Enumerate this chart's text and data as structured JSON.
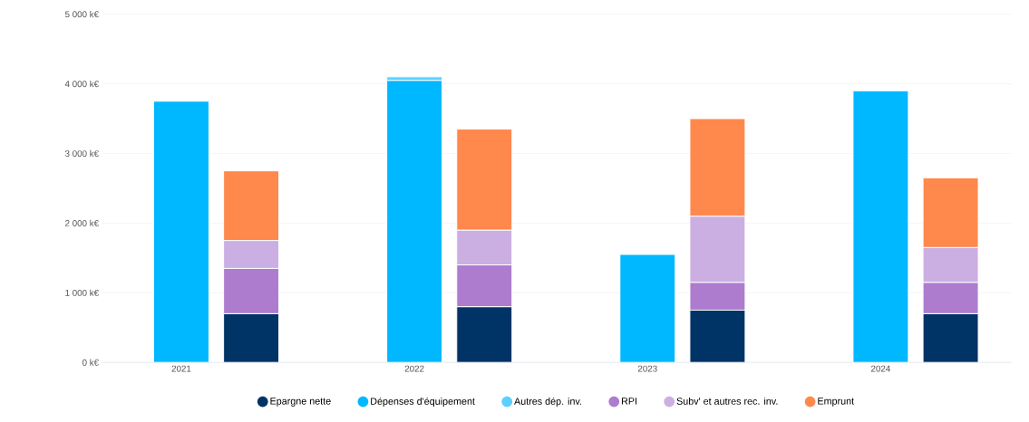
{
  "chart_data": {
    "type": "bar",
    "categories": [
      "2021",
      "2022",
      "2023",
      "2024"
    ],
    "series": [
      {
        "name": "Epargne nette",
        "color": "#003366",
        "values": [
          700,
          800,
          750,
          700
        ],
        "base": [
          0,
          0,
          0,
          0
        ]
      },
      {
        "name": "Dépenses d'équipement",
        "color": "#00b8ff",
        "values": [
          3750,
          4050,
          1550,
          3900
        ],
        "base": [
          0,
          0,
          0,
          0
        ]
      },
      {
        "name": "Autres dép. inv.",
        "color": "#5bd0ff",
        "values": [
          null,
          50,
          null,
          null
        ],
        "base": [
          null,
          4050,
          null,
          null
        ]
      },
      {
        "name": "RPI",
        "color": "#ad7ccf",
        "values": [
          650,
          600,
          400,
          450
        ],
        "base": [
          700,
          800,
          750,
          700
        ]
      },
      {
        "name": "Subv' et autres rec. inv.",
        "color": "#cbaee2",
        "values": [
          400,
          500,
          950,
          500
        ],
        "base": [
          1350,
          1400,
          1150,
          1150
        ]
      },
      {
        "name": "Emprunt",
        "color": "#ff884d",
        "values": [
          1000,
          1450,
          1400,
          1000
        ],
        "base": [
          1750,
          1900,
          2100,
          1650
        ]
      }
    ],
    "ylim": [
      0,
      5000
    ],
    "yticks": [
      {
        "value": 0,
        "label": "0 k€"
      },
      {
        "value": 1000,
        "label": "1 000 k€"
      },
      {
        "value": 2000,
        "label": "2 000 k€"
      },
      {
        "value": 3000,
        "label": "3 000 k€"
      },
      {
        "value": 4000,
        "label": "4 000 k€"
      },
      {
        "value": 5000,
        "label": "5 000 k€"
      }
    ],
    "grid": "y",
    "legend": "bottom"
  }
}
